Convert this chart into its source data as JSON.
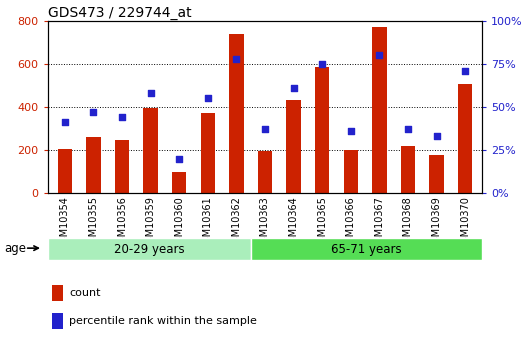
{
  "title": "GDS473 / 229744_at",
  "samples": [
    "GSM10354",
    "GSM10355",
    "GSM10356",
    "GSM10359",
    "GSM10360",
    "GSM10361",
    "GSM10362",
    "GSM10363",
    "GSM10364",
    "GSM10365",
    "GSM10366",
    "GSM10367",
    "GSM10368",
    "GSM10369",
    "GSM10370"
  ],
  "counts": [
    205,
    260,
    245,
    395,
    100,
    370,
    740,
    195,
    430,
    585,
    200,
    770,
    220,
    175,
    505
  ],
  "percentile": [
    41,
    47,
    44,
    58,
    20,
    55,
    78,
    37,
    61,
    75,
    36,
    80,
    37,
    33,
    71
  ],
  "group1_label": "20-29 years",
  "group2_label": "65-71 years",
  "group1_count": 7,
  "group2_count": 8,
  "bar_color": "#cc2200",
  "dot_color": "#2222cc",
  "group1_bg": "#aaeebb",
  "group2_bg": "#55dd55",
  "age_label": "age",
  "legend1": "count",
  "legend2": "percentile rank within the sample",
  "ylim_left": [
    0,
    800
  ],
  "ylim_right": [
    0,
    100
  ],
  "yticks_left": [
    0,
    200,
    400,
    600,
    800
  ],
  "ytick_labels_left": [
    "0",
    "200",
    "400",
    "600",
    "800"
  ],
  "ytick_labels_right": [
    "0%",
    "25%",
    "50%",
    "75%",
    "100%"
  ],
  "yticks_right": [
    0,
    25,
    50,
    75,
    100
  ]
}
